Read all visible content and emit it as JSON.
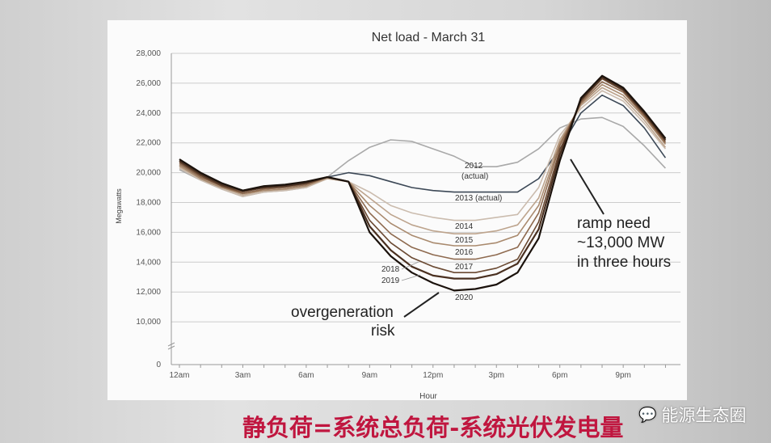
{
  "chart_data": {
    "type": "line",
    "title": "Net load - March 31",
    "xlabel": "Hour",
    "ylabel": "Megawatts",
    "x": [
      0,
      1,
      2,
      3,
      4,
      5,
      6,
      7,
      8,
      9,
      10,
      11,
      12,
      13,
      14,
      15,
      16,
      17,
      18,
      19,
      20,
      21,
      22,
      23
    ],
    "x_ticks": [
      {
        "h": 0,
        "label": "12am"
      },
      {
        "h": 3,
        "label": "3am"
      },
      {
        "h": 6,
        "label": "6am"
      },
      {
        "h": 9,
        "label": "9am"
      },
      {
        "h": 12,
        "label": "12pm"
      },
      {
        "h": 15,
        "label": "3pm"
      },
      {
        "h": 18,
        "label": "6pm"
      },
      {
        "h": 21,
        "label": "9pm"
      }
    ],
    "y_ticks": [
      0,
      10000,
      12000,
      14000,
      16000,
      18000,
      20000,
      22000,
      24000,
      26000,
      28000
    ],
    "y_tick_labels": [
      "0",
      "10,000",
      "12,000",
      "14,000",
      "16,000",
      "18,000",
      "20,000",
      "22,000",
      "24,000",
      "26,000",
      "28,000"
    ],
    "ylim": [
      0,
      28000
    ],
    "y_axis_break": true,
    "grid": true,
    "series": [
      {
        "name": "2012 (actual)",
        "color": "#a9a9a9",
        "values": [
          20200,
          19500,
          18900,
          18400,
          18700,
          18800,
          19000,
          19700,
          20800,
          21700,
          22200,
          22100,
          21600,
          21100,
          20400,
          20400,
          20700,
          21600,
          23000,
          23600,
          23700,
          23100,
          21800,
          20300
        ]
      },
      {
        "name": "2013 (actual)",
        "color": "#3c4856",
        "values": [
          20500,
          19600,
          19000,
          18600,
          18900,
          19000,
          19200,
          19700,
          20000,
          19800,
          19400,
          19000,
          18800,
          18700,
          18700,
          18700,
          18700,
          19600,
          21600,
          24000,
          25200,
          24500,
          23000,
          21000
        ]
      },
      {
        "name": "2014",
        "color": "#cbbcae",
        "values": [
          20300,
          19500,
          18900,
          18400,
          18700,
          18800,
          19000,
          19600,
          19400,
          18700,
          17800,
          17300,
          17000,
          16800,
          16800,
          17000,
          17200,
          19000,
          22500,
          24300,
          25500,
          24800,
          23300,
          21600
        ]
      },
      {
        "name": "2015",
        "color": "#bda48d",
        "values": [
          20400,
          19600,
          19000,
          18500,
          18800,
          18900,
          19100,
          19600,
          19400,
          18300,
          17200,
          16500,
          16100,
          15900,
          15900,
          16100,
          16500,
          18300,
          22200,
          24500,
          25700,
          25000,
          23500,
          21700
        ]
      },
      {
        "name": "2016",
        "color": "#a98a6e",
        "values": [
          20500,
          19600,
          19000,
          18600,
          18800,
          18900,
          19100,
          19700,
          19400,
          17800,
          16600,
          15800,
          15300,
          15100,
          15100,
          15300,
          15800,
          17800,
          22000,
          24600,
          25900,
          25200,
          23700,
          21900
        ]
      },
      {
        "name": "2017",
        "color": "#8e6a4f",
        "values": [
          20600,
          19700,
          19100,
          18600,
          18900,
          19000,
          19200,
          19700,
          19400,
          17300,
          15900,
          15000,
          14500,
          14200,
          14200,
          14500,
          15000,
          17300,
          21800,
          24700,
          26100,
          25400,
          23800,
          22000
        ]
      },
      {
        "name": "2018",
        "color": "#6b4a33",
        "values": [
          20700,
          19800,
          19100,
          18700,
          19000,
          19100,
          19300,
          19700,
          19400,
          16800,
          15300,
          14300,
          13700,
          13300,
          13300,
          13600,
          14200,
          16700,
          21500,
          24800,
          26300,
          25500,
          23900,
          22100
        ]
      },
      {
        "name": "2019",
        "color": "#4a3020",
        "values": [
          20800,
          19900,
          19200,
          18800,
          19000,
          19100,
          19300,
          19700,
          19400,
          16400,
          14800,
          13700,
          13100,
          12900,
          12900,
          13200,
          13900,
          16200,
          21200,
          24900,
          26400,
          25600,
          24000,
          22200
        ]
      },
      {
        "name": "2020",
        "color": "#1b120c",
        "values": [
          20900,
          20000,
          19300,
          18800,
          19100,
          19200,
          19400,
          19700,
          19400,
          16000,
          14400,
          13300,
          12600,
          12100,
          12200,
          12500,
          13300,
          15600,
          20800,
          25000,
          26500,
          25700,
          24100,
          22300
        ]
      }
    ],
    "series_labels": [
      "2012",
      "(actual)",
      "2013 (actual)",
      "2014",
      "2015",
      "2016",
      "2017",
      "2018",
      "2019",
      "2020"
    ],
    "annotations": {
      "overgeneration": "overgeneration",
      "risk": "risk",
      "ramp1": "ramp need",
      "ramp2": "~13,000 MW",
      "ramp3": "in three hours"
    }
  },
  "caption": "静负荷=系统总负荷-系统光伏发电量",
  "watermark": "能源生态圈",
  "colors": {
    "caption": "#c0163f",
    "panel": "#fbfbfb"
  }
}
